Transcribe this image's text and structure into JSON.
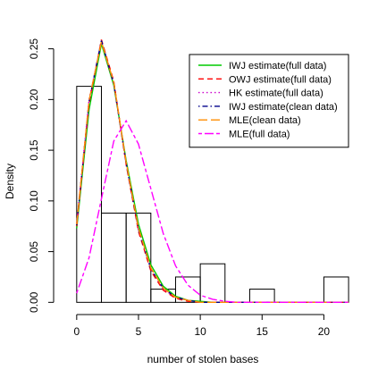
{
  "chart_data": {
    "type": "line",
    "title": "",
    "xlabel": "number of stolen bases",
    "ylabel": "Density",
    "xlim": [
      -1,
      22.5
    ],
    "ylim": [
      -0.005,
      0.262
    ],
    "x_ticks": [
      0,
      5,
      10,
      15,
      20
    ],
    "y_ticks": [
      0.0,
      0.05,
      0.1,
      0.15,
      0.2,
      0.25
    ],
    "y_tick_labels": [
      "0.00",
      "0.05",
      "0.10",
      "0.15",
      "0.20",
      "0.25"
    ],
    "histogram": {
      "bins": [
        {
          "x0": 0,
          "x1": 2,
          "density": 0.213
        },
        {
          "x0": 2,
          "x1": 4,
          "density": 0.088
        },
        {
          "x0": 4,
          "x1": 6,
          "density": 0.088
        },
        {
          "x0": 6,
          "x1": 8,
          "density": 0.013
        },
        {
          "x0": 8,
          "x1": 10,
          "density": 0.025
        },
        {
          "x0": 10,
          "x1": 12,
          "density": 0.038
        },
        {
          "x0": 12,
          "x1": 14,
          "density": 0.0
        },
        {
          "x0": 14,
          "x1": 16,
          "density": 0.013
        },
        {
          "x0": 16,
          "x1": 18,
          "density": 0.0
        },
        {
          "x0": 18,
          "x1": 20,
          "density": 0.0
        },
        {
          "x0": 20,
          "x1": 22,
          "density": 0.025
        }
      ]
    },
    "legend_position": "top-right",
    "series": [
      {
        "name": "IWJ estimate(full data)",
        "color": "#00cc00",
        "dash": "solid",
        "x": [
          0,
          1,
          2,
          3,
          4,
          5,
          6,
          7,
          8,
          9,
          10,
          11,
          12,
          13,
          14,
          15,
          16,
          17,
          18,
          19,
          20,
          21,
          22
        ],
        "y": [
          0.073,
          0.19,
          0.255,
          0.214,
          0.14,
          0.077,
          0.037,
          0.016,
          0.006,
          0.002,
          0.001,
          0,
          0,
          0,
          0,
          0,
          0,
          0,
          0,
          0,
          0,
          0,
          0
        ]
      },
      {
        "name": "OWJ estimate(full data)",
        "color": "#ff0000",
        "dash": "dashed",
        "x": [
          0,
          1,
          2,
          3,
          4,
          5,
          6,
          7,
          8,
          9,
          10,
          11,
          12,
          13,
          14,
          15,
          16,
          17,
          18,
          19,
          20,
          21,
          22
        ],
        "y": [
          0.075,
          0.196,
          0.259,
          0.218,
          0.136,
          0.07,
          0.031,
          0.012,
          0.004,
          0.001,
          0,
          0,
          0,
          0,
          0,
          0,
          0,
          0,
          0,
          0,
          0,
          0,
          0
        ]
      },
      {
        "name": "HK estimate(full data)",
        "color": "#cc00cc",
        "dash": "dotted",
        "x": [
          0,
          1,
          2,
          3,
          4,
          5,
          6,
          7,
          8,
          9,
          10,
          11,
          12,
          13,
          14,
          15,
          16,
          17,
          18,
          19,
          20,
          21,
          22
        ],
        "y": [
          0.078,
          0.2,
          0.257,
          0.215,
          0.137,
          0.072,
          0.033,
          0.013,
          0.005,
          0.002,
          0,
          0,
          0,
          0,
          0,
          0,
          0,
          0,
          0,
          0,
          0,
          0,
          0
        ]
      },
      {
        "name": "IWJ estimate(clean data)",
        "color": "#00008b",
        "dash": "dashdot",
        "x": [
          0,
          1,
          2,
          3,
          4,
          5,
          6,
          7,
          8,
          9,
          10,
          11,
          12,
          13,
          14,
          15,
          16,
          17,
          18,
          19,
          20,
          21,
          22
        ],
        "y": [
          0.076,
          0.198,
          0.258,
          0.216,
          0.137,
          0.072,
          0.033,
          0.014,
          0.005,
          0.002,
          0,
          0,
          0,
          0,
          0,
          0,
          0,
          0,
          0,
          0,
          0,
          0,
          0
        ]
      },
      {
        "name": "MLE(clean data)",
        "color": "#ff8c00",
        "dash": "longdash",
        "x": [
          0,
          1,
          2,
          3,
          4,
          5,
          6,
          7,
          8,
          9,
          10,
          11,
          12,
          13,
          14,
          15,
          16,
          17,
          18,
          19,
          20,
          21,
          22
        ],
        "y": [
          0.077,
          0.199,
          0.257,
          0.217,
          0.138,
          0.073,
          0.034,
          0.014,
          0.005,
          0.002,
          0,
          0,
          0,
          0,
          0,
          0,
          0,
          0,
          0,
          0,
          0,
          0,
          0
        ]
      },
      {
        "name": "MLE(full data)",
        "color": "#ff00ff",
        "dash": "twodash",
        "x": [
          0,
          1,
          2,
          3,
          4,
          5,
          6,
          7,
          8,
          9,
          10,
          11,
          12,
          13,
          14,
          15,
          16,
          17,
          18,
          19,
          20,
          21,
          22
        ],
        "y": [
          0.009,
          0.044,
          0.102,
          0.159,
          0.179,
          0.156,
          0.112,
          0.068,
          0.036,
          0.017,
          0.007,
          0.003,
          0.001,
          0,
          0,
          0,
          0,
          0,
          0,
          0,
          0,
          0,
          0
        ]
      }
    ]
  }
}
